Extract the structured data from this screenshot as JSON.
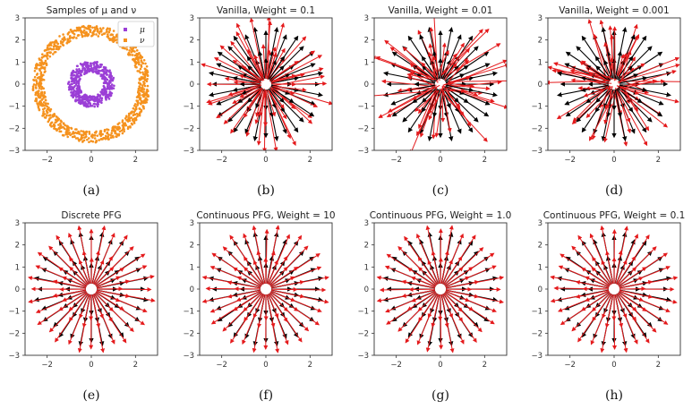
{
  "chart_data": [
    {
      "type": "scatter",
      "title": "Samples of μ and ν",
      "caption": "(a)",
      "xlim": [
        -3,
        3
      ],
      "ylim": [
        -3,
        3
      ],
      "xticks": [
        "−2",
        "0",
        "2"
      ],
      "yticks": [
        "3",
        "2",
        "1",
        "0",
        "−1",
        "−2",
        "−3"
      ],
      "legend": {
        "position": "top-right",
        "entries": [
          {
            "label": "μ",
            "color": "#9b3fd6"
          },
          {
            "label": "ν",
            "color": "#f5921e"
          }
        ]
      },
      "series": [
        {
          "name": "μ",
          "shape": "annulus",
          "r_inner": 0.55,
          "r_outer": 1.05,
          "color": "#9b3fd6"
        },
        {
          "name": "ν",
          "shape": "annulus",
          "r_inner": 2.15,
          "r_outer": 2.65,
          "color": "#f5921e"
        }
      ]
    },
    {
      "type": "vector_field",
      "title": "Vanilla, Weight = 0.1",
      "caption": "(b)",
      "xlim": [
        -3,
        3
      ],
      "ylim": [
        -3,
        3
      ],
      "xticks": [
        "−2",
        "0",
        "2"
      ],
      "yticks": [
        "3",
        "2",
        "1",
        "0",
        "−1",
        "−2",
        "−3"
      ],
      "red_noise": 0.35
    },
    {
      "type": "vector_field",
      "title": "Vanilla, Weight = 0.01",
      "caption": "(c)",
      "xlim": [
        -3,
        3
      ],
      "ylim": [
        -3,
        3
      ],
      "xticks": [
        "−2",
        "0",
        "2"
      ],
      "yticks": [
        "3",
        "2",
        "1",
        "0",
        "−1",
        "−2",
        "−3"
      ],
      "red_noise": 1.0
    },
    {
      "type": "vector_field",
      "title": "Vanilla, Weight = 0.001",
      "caption": "(d)",
      "xlim": [
        -3,
        3
      ],
      "ylim": [
        -3,
        3
      ],
      "xticks": [
        "−2",
        "0",
        "2"
      ],
      "yticks": [
        "3",
        "2",
        "1",
        "0",
        "−1",
        "−2",
        "−3"
      ],
      "red_noise": 0.85
    },
    {
      "type": "vector_field",
      "title": "Discrete PFG",
      "caption": "(e)",
      "xlim": [
        -3,
        3
      ],
      "ylim": [
        -3,
        3
      ],
      "xticks": [
        "−2",
        "0",
        "2"
      ],
      "yticks": [
        "3",
        "2",
        "1",
        "0",
        "−1",
        "−2",
        "−3"
      ],
      "red_noise": 0.03
    },
    {
      "type": "vector_field",
      "title": "Continuous PFG, Weight = 10",
      "caption": "(f)",
      "xlim": [
        -3,
        3
      ],
      "ylim": [
        -3,
        3
      ],
      "xticks": [
        "−2",
        "0",
        "2"
      ],
      "yticks": [
        "3",
        "2",
        "1",
        "0",
        "−1",
        "−2",
        "−3"
      ],
      "red_noise": 0.03
    },
    {
      "type": "vector_field",
      "title": "Continuous PFG, Weight = 1.0",
      "caption": "(g)",
      "xlim": [
        -3,
        3
      ],
      "ylim": [
        -3,
        3
      ],
      "xticks": [
        "−2",
        "0",
        "2"
      ],
      "yticks": [
        "3",
        "2",
        "1",
        "0",
        "−1",
        "−2",
        "−3"
      ],
      "red_noise": 0.03
    },
    {
      "type": "vector_field",
      "title": "Continuous PFG, Weight = 0.1",
      "caption": "(h)",
      "xlim": [
        -3,
        3
      ],
      "ylim": [
        -3,
        3
      ],
      "xticks": [
        "−2",
        "0",
        "2"
      ],
      "yticks": [
        "3",
        "2",
        "1",
        "0",
        "−1",
        "−2",
        "−3"
      ],
      "red_noise": 0.03
    }
  ],
  "colors": {
    "true_vector": "#000000",
    "estimated_vector": "#e41a1c"
  }
}
